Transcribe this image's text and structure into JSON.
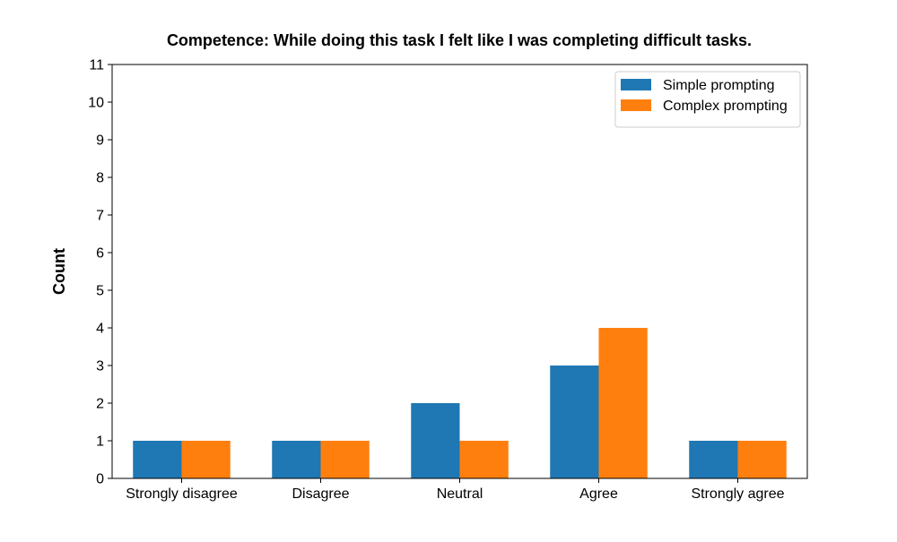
{
  "chart_data": {
    "type": "bar",
    "title": "Competence: While doing this task I felt like I was completing difficult tasks.",
    "xlabel": "",
    "ylabel": "Count",
    "categories": [
      "Strongly disagree",
      "Disagree",
      "Neutral",
      "Agree",
      "Strongly agree"
    ],
    "series": [
      {
        "name": "Simple prompting",
        "values": [
          1,
          1,
          2,
          3,
          1
        ],
        "color": "#1f77b4"
      },
      {
        "name": "Complex prompting",
        "values": [
          1,
          1,
          1,
          4,
          1
        ],
        "color": "#ff7f0e"
      }
    ],
    "ylim": [
      0,
      11
    ],
    "yticks": [
      0,
      1,
      2,
      3,
      4,
      5,
      6,
      7,
      8,
      9,
      10,
      11
    ],
    "grid": false,
    "legend_position": "top-right"
  }
}
